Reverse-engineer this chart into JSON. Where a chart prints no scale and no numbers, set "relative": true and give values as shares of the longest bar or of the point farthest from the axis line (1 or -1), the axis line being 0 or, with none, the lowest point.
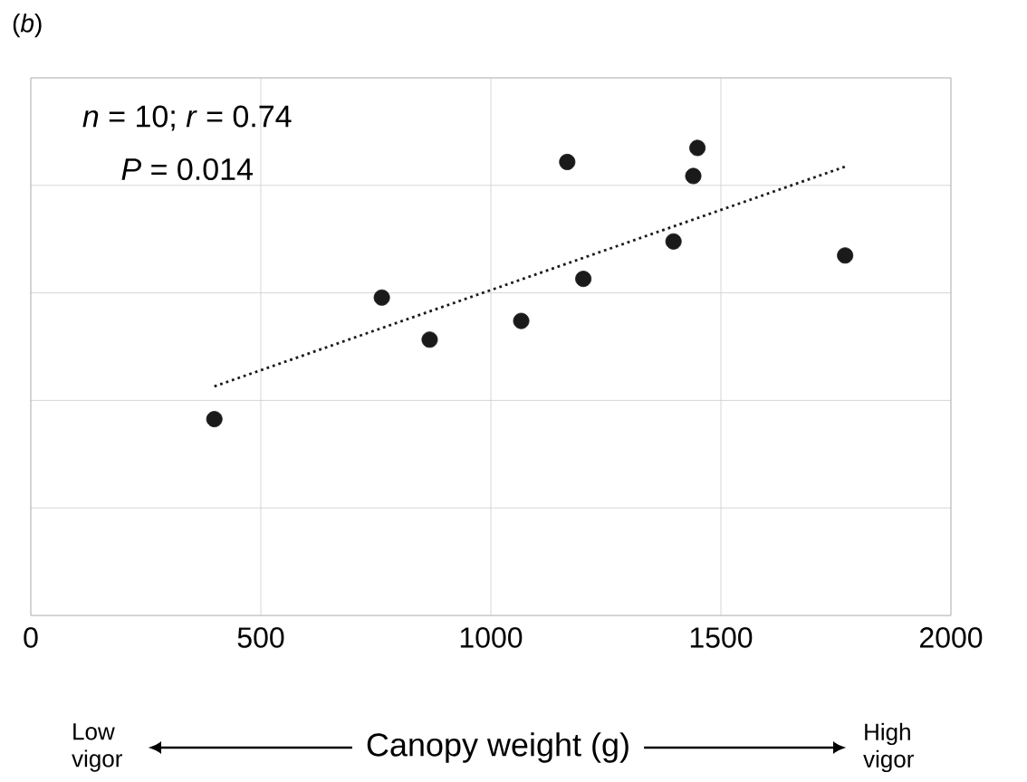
{
  "chart_data": {
    "type": "scatter",
    "title": "(*b*)",
    "xlabel": "Canopy weight (g)",
    "relative": true,
    "xlim": [
      0,
      2000
    ],
    "xticks": [
      0,
      500,
      1000,
      1500,
      2000
    ],
    "grid": true,
    "tick_labels": "x",
    "annotations": [
      "*n* = 10; *r* = 0.74",
      "*P* = 0.014",
      "Low vigor",
      "High vigor"
    ],
    "series": [
      {
        "type": "scatter",
        "marker": "circle",
        "color": "#1a1a1a",
        "x": [
          399,
          763,
          867,
          1066,
          1166,
          1201,
          1397,
          1449,
          1440,
          1770
        ],
        "values": [
          0.42,
          0.68,
          0.59,
          0.63,
          0.97,
          0.72,
          0.8,
          1.0,
          0.94,
          0.77
        ]
      },
      {
        "type": "line",
        "color": "#1a1a1a",
        "line_style": "dotted",
        "marker": "none",
        "x": [
          399,
          1770
        ],
        "values": [
          0.49,
          0.96
        ]
      }
    ]
  }
}
